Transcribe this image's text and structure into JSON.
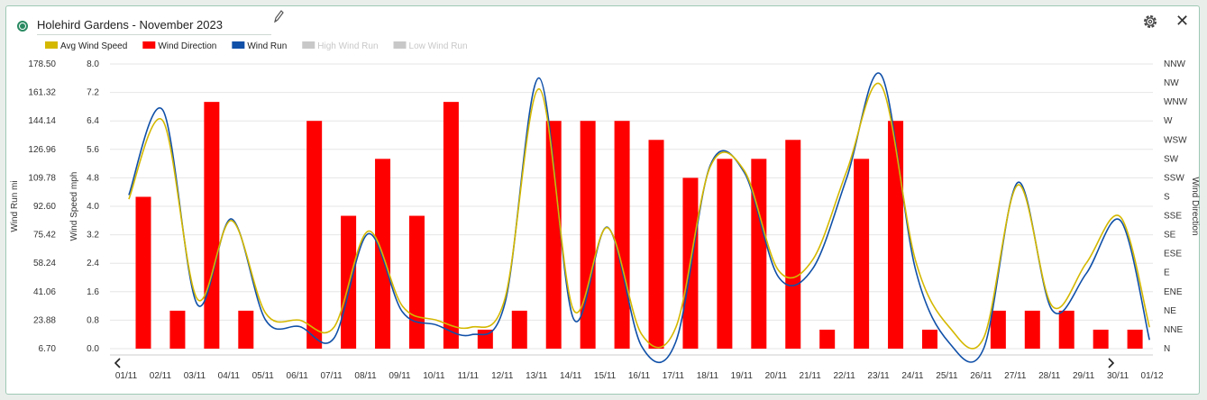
{
  "header": {
    "title": "Holehird Gardens - November 2023"
  },
  "icons": {
    "status": "status-dot-icon",
    "edit": "pencil-icon",
    "settings": "gear-icon",
    "close": "close-icon",
    "nav_left": "chevron-left-icon",
    "nav_right": "chevron-right-icon"
  },
  "colors": {
    "avg_wind_speed": "#d4b800",
    "wind_direction": "#ff0000",
    "wind_run": "#1050a8",
    "inactive": "#c8c8c8",
    "accent": "#2a8a62"
  },
  "chart_data": {
    "type": "bar",
    "x": [
      "01/11",
      "02/11",
      "03/11",
      "04/11",
      "05/11",
      "06/11",
      "07/11",
      "08/11",
      "09/11",
      "10/11",
      "11/11",
      "12/11",
      "13/11",
      "14/11",
      "15/11",
      "16/11",
      "17/11",
      "18/11",
      "19/11",
      "20/11",
      "21/11",
      "22/11",
      "23/11",
      "24/11",
      "25/11",
      "26/11",
      "27/11",
      "28/11",
      "29/11",
      "30/11",
      "01/12"
    ],
    "legend": [
      {
        "name": "Avg Wind Speed",
        "active": true
      },
      {
        "name": "Wind Direction",
        "active": true
      },
      {
        "name": "Wind Run",
        "active": true
      },
      {
        "name": "High Wind Run",
        "active": false
      },
      {
        "name": "Low Wind Run",
        "active": false
      }
    ],
    "axes": {
      "wind_run": {
        "label": "Wind Run mi",
        "ticks": [
          "178.50",
          "161.32",
          "144.14",
          "126.96",
          "109.78",
          "92.60",
          "75.42",
          "58.24",
          "41.06",
          "23.88",
          "6.70"
        ],
        "range": [
          6.7,
          178.5
        ]
      },
      "wind_speed": {
        "label": "Wind Speed mph",
        "ticks": [
          "8.0",
          "7.2",
          "6.4",
          "5.6",
          "4.8",
          "4.0",
          "3.2",
          "2.4",
          "1.6",
          "0.8",
          "0.0"
        ],
        "range": [
          0,
          8
        ]
      },
      "wind_direction": {
        "label": "Wind Direction",
        "ticks": [
          "NNW",
          "NW",
          "WNW",
          "W",
          "WSW",
          "SW",
          "SSW",
          "S",
          "SSE",
          "SE",
          "ESE",
          "E",
          "ENE",
          "NE",
          "NNE",
          "N"
        ],
        "range": [
          0,
          15
        ]
      }
    },
    "series": [
      {
        "name": "Wind Direction",
        "type": "bar",
        "axis": "wind_direction",
        "points": [
          [
            "01/11",
            8
          ],
          [
            "02/11",
            2
          ],
          [
            "03/11",
            13
          ],
          [
            "04/11",
            2
          ],
          [
            "06/11",
            12
          ],
          [
            "07/11",
            7
          ],
          [
            "08/11",
            10
          ],
          [
            "09/11",
            7
          ],
          [
            "10/11",
            13
          ],
          [
            "11/11",
            1
          ],
          [
            "12/11",
            2
          ],
          [
            "13/11",
            12
          ],
          [
            "14/11",
            12
          ],
          [
            "15/11",
            12
          ],
          [
            "16/11",
            11
          ],
          [
            "17/11",
            9
          ],
          [
            "18/11",
            10
          ],
          [
            "19/11",
            10
          ],
          [
            "20/11",
            11
          ],
          [
            "21/11",
            1
          ],
          [
            "22/11",
            10
          ],
          [
            "23/11",
            12
          ],
          [
            "24/11",
            1
          ],
          [
            "26/11",
            2
          ],
          [
            "27/11",
            2
          ],
          [
            "28/11",
            2
          ],
          [
            "29/11",
            1
          ],
          [
            "30/11",
            1
          ]
        ]
      },
      {
        "name": "Avg Wind Speed",
        "type": "line",
        "axis": "wind_speed",
        "points": [
          [
            0.55,
            4.2
          ],
          [
            1.55,
            6.4
          ],
          [
            2.55,
            1.4
          ],
          [
            3.55,
            3.6
          ],
          [
            4.55,
            1.0
          ],
          [
            5.55,
            0.8
          ],
          [
            6.55,
            0.6
          ],
          [
            7.55,
            3.3
          ],
          [
            8.55,
            1.2
          ],
          [
            9.55,
            0.8
          ],
          [
            10.55,
            0.6
          ],
          [
            11.55,
            1.4
          ],
          [
            12.55,
            7.3
          ],
          [
            13.55,
            1.1
          ],
          [
            14.55,
            3.4
          ],
          [
            15.55,
            0.4
          ],
          [
            16.55,
            0.6
          ],
          [
            17.55,
            5.1
          ],
          [
            18.55,
            5.0
          ],
          [
            19.55,
            2.2
          ],
          [
            20.55,
            2.5
          ],
          [
            21.55,
            5.0
          ],
          [
            22.55,
            7.4
          ],
          [
            23.55,
            2.5
          ],
          [
            24.55,
            0.6
          ],
          [
            25.55,
            0.3
          ],
          [
            26.55,
            4.6
          ],
          [
            27.55,
            1.2
          ],
          [
            28.55,
            2.4
          ],
          [
            29.55,
            3.7
          ],
          [
            30.4,
            0.6
          ]
        ]
      },
      {
        "name": "Wind Run",
        "type": "line",
        "axis": "wind_run",
        "points": [
          [
            0.55,
            99.4
          ],
          [
            1.55,
            150.5
          ],
          [
            2.55,
            33.5
          ],
          [
            3.55,
            85.0
          ],
          [
            4.55,
            24.0
          ],
          [
            5.55,
            20.0
          ],
          [
            6.55,
            13.0
          ],
          [
            7.55,
            76.0
          ],
          [
            8.55,
            29.0
          ],
          [
            9.55,
            21.0
          ],
          [
            10.55,
            15.0
          ],
          [
            11.55,
            34.0
          ],
          [
            12.55,
            170.0
          ],
          [
            13.55,
            25.0
          ],
          [
            14.55,
            80.0
          ],
          [
            15.55,
            8.0
          ],
          [
            16.55,
            11.0
          ],
          [
            17.55,
            117.0
          ],
          [
            18.55,
            113.0
          ],
          [
            19.55,
            50.0
          ],
          [
            20.55,
            55.0
          ],
          [
            21.55,
            110.0
          ],
          [
            22.55,
            172.0
          ],
          [
            23.55,
            55.0
          ],
          [
            24.55,
            10.0
          ],
          [
            25.55,
            6.7
          ],
          [
            26.55,
            107.0
          ],
          [
            27.55,
            30.0
          ],
          [
            28.55,
            52.0
          ],
          [
            29.55,
            84.0
          ],
          [
            30.4,
            12.0
          ]
        ]
      }
    ]
  }
}
